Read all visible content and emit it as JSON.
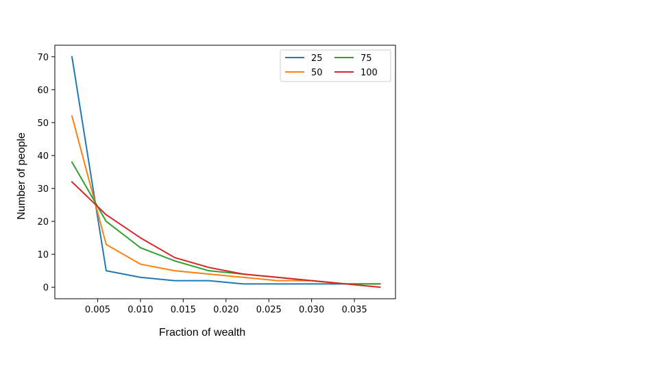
{
  "chart_data": {
    "type": "line",
    "xlabel": "Fraction of wealth",
    "ylabel": "Number of people",
    "xlim": [
      0.0,
      0.0398
    ],
    "ylim": [
      -3.5,
      73.5
    ],
    "xticks": [
      "0.005",
      "0.010",
      "0.015",
      "0.020",
      "0.025",
      "0.030",
      "0.035"
    ],
    "xtick_values": [
      0.005,
      0.01,
      0.015,
      0.02,
      0.025,
      0.03,
      0.035
    ],
    "yticks": [
      "0",
      "10",
      "20",
      "30",
      "40",
      "50",
      "60",
      "70"
    ],
    "ytick_values": [
      0,
      10,
      20,
      30,
      40,
      50,
      60,
      70
    ],
    "grid": false,
    "legend_position": "top-right",
    "legend_columns": 2,
    "x": [
      0.002,
      0.006,
      0.01,
      0.014,
      0.018,
      0.022,
      0.026,
      0.03,
      0.034,
      0.038
    ],
    "series": [
      {
        "name": "25",
        "color": "#1f77b4",
        "values": [
          70,
          5,
          3,
          2,
          2,
          1,
          1,
          1,
          1,
          1
        ]
      },
      {
        "name": "50",
        "color": "#ff7f0e",
        "values": [
          52,
          13,
          7,
          5,
          4,
          3,
          2,
          2,
          1,
          1
        ]
      },
      {
        "name": "75",
        "color": "#2ca02c",
        "values": [
          38,
          20,
          12,
          8,
          5,
          4,
          3,
          2,
          1,
          1
        ]
      },
      {
        "name": "100",
        "color": "#d62728",
        "values": [
          32,
          22,
          15,
          9,
          6,
          4,
          3,
          2,
          1,
          0
        ]
      }
    ]
  }
}
